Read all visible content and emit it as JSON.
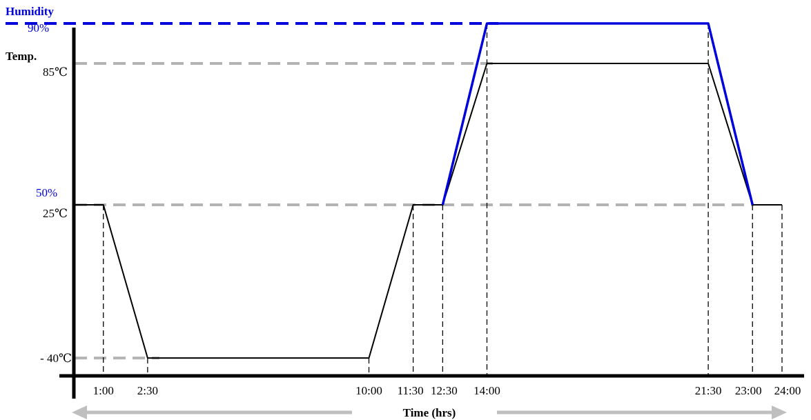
{
  "chart_data": {
    "type": "line",
    "xlabel": "Time (hrs)",
    "y_axis_labels": {
      "humidity_title": "Humidity",
      "temp_title": "Temp."
    },
    "ticks": {
      "x": [
        {
          "value": 1.0,
          "label": "1:00"
        },
        {
          "value": 2.5,
          "label": "2:30"
        },
        {
          "value": 10.0,
          "label": "10:00"
        },
        {
          "value": 11.5,
          "label": "11:30"
        },
        {
          "value": 12.5,
          "label": "12:30"
        },
        {
          "value": 14.0,
          "label": "14:00"
        },
        {
          "value": 21.5,
          "label": "21:30"
        },
        {
          "value": 23.0,
          "label": "23:00"
        },
        {
          "value": 24.0,
          "label": "24:00"
        }
      ],
      "temp": [
        {
          "value": 85,
          "label": "85℃"
        },
        {
          "value": 25,
          "label": "25℃"
        },
        {
          "value": -40,
          "label": "- 40℃"
        }
      ],
      "humidity": [
        {
          "value": 90,
          "label": "90%"
        },
        {
          "value": 50,
          "label": "50%"
        }
      ]
    },
    "series": [
      {
        "key": "temp",
        "color": "#000000",
        "points": [
          {
            "x": 0,
            "y": 25
          },
          {
            "x": 1.0,
            "y": 25
          },
          {
            "x": 2.5,
            "y": -40
          },
          {
            "x": 10.0,
            "y": -40
          },
          {
            "x": 11.5,
            "y": 25
          },
          {
            "x": 12.5,
            "y": 25
          },
          {
            "x": 14.0,
            "y": 85
          },
          {
            "x": 21.5,
            "y": 85
          },
          {
            "x": 23.0,
            "y": 25
          },
          {
            "x": 24.0,
            "y": 25
          }
        ]
      },
      {
        "key": "humidity",
        "color": "#0000dd",
        "points": [
          {
            "x": 12.5,
            "y": 50
          },
          {
            "x": 14.0,
            "y": 90
          },
          {
            "x": 21.5,
            "y": 90
          },
          {
            "x": 23.0,
            "y": 50
          }
        ]
      }
    ],
    "colors": {
      "axis": "#000000",
      "humidity": "#0000dd",
      "guide": "#b3b3b3",
      "time_arrow": "#bfbfbf"
    },
    "grid": false
  }
}
